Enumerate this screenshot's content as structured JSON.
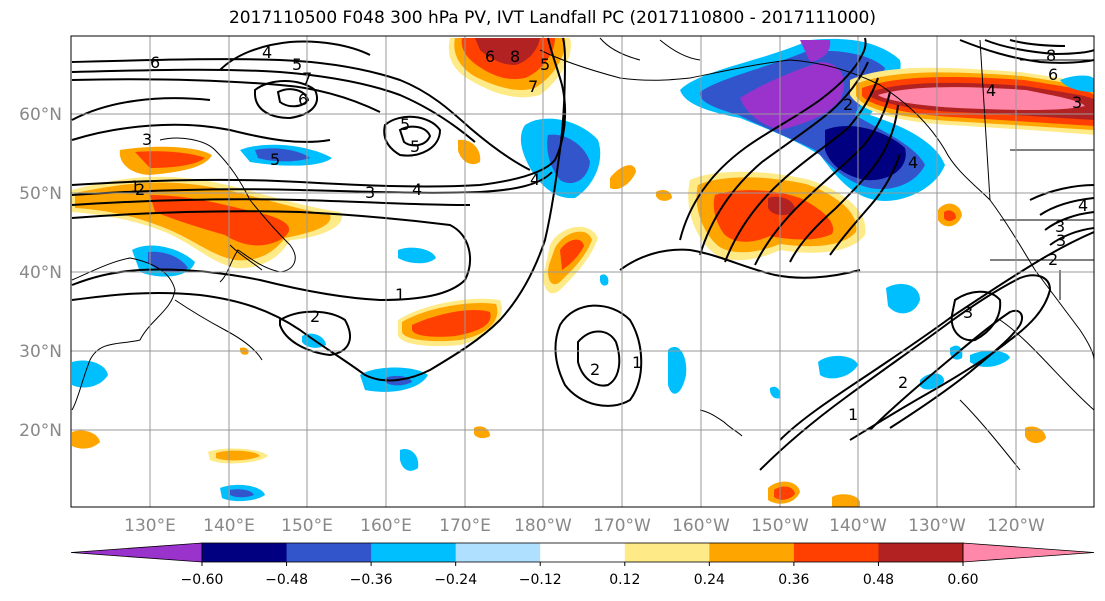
{
  "title": "2017110500 F048 300 hPa PV, IVT Landfall PC (2017110800 - 2017111000)",
  "lat_labels": [
    "60°N",
    "50°N",
    "40°N",
    "30°N",
    "20°N"
  ],
  "lon_labels": [
    "130°E",
    "140°E",
    "150°E",
    "160°E",
    "170°E",
    "180°W",
    "170°W",
    "160°W",
    "150°W",
    "140°W",
    "130°W",
    "120°W"
  ],
  "contour_labels": [
    "6",
    "4",
    "5",
    "7",
    "6",
    "3",
    "5",
    "5",
    "5",
    "6",
    "8",
    "3",
    "4",
    "4",
    "5",
    "7",
    "1",
    "1",
    "2",
    "2",
    "1",
    "3",
    "2",
    "1",
    "2",
    "3",
    "4",
    "8",
    "6",
    "4",
    "3",
    "2",
    "4",
    "2",
    "3"
  ],
  "colorbar": {
    "tick_labels": [
      "−0.60",
      "−0.48",
      "−0.36",
      "−0.24",
      "−0.12",
      "0.12",
      "0.24",
      "0.36",
      "0.48",
      "0.60"
    ],
    "colors": [
      "#9933cc",
      "#000080",
      "#3355cc",
      "#00bfff",
      "#b0e0ff",
      "#ffffff",
      "#ffea88",
      "#ffa500",
      "#ff4000",
      "#b22222",
      "#ff88aa"
    ]
  },
  "legend_colors": {
    "neg_strong": "#000080",
    "neg_purple": "#9933cc",
    "neg_mid": "#3355cc",
    "neg_cyan": "#00bfff",
    "neg_light": "#b0e0ff",
    "pos_light": "#ffea88",
    "pos_orange": "#ffa500",
    "pos_red": "#ff4000",
    "pos_dark": "#b22222",
    "pos_pink": "#ff88aa",
    "contour": "#000000",
    "coast": "#000000",
    "grid": "#999999"
  }
}
